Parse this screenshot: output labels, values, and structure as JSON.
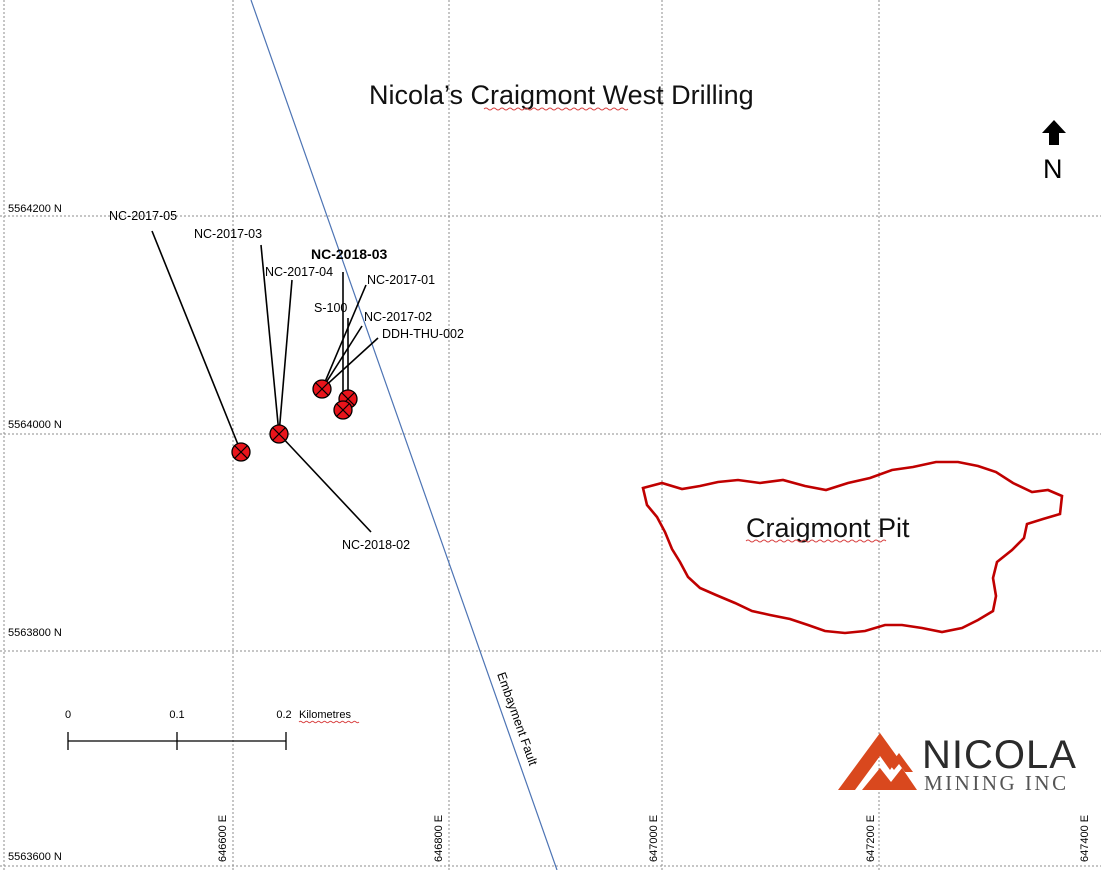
{
  "title": "Nicola’s Craigmont West Drilling",
  "north_label": "N",
  "grid": {
    "northings": [
      "5564200 N",
      "5564000 N",
      "5563800 N",
      "5563600 N"
    ],
    "eastings": [
      "646600 E",
      "646800 E",
      "647000 E",
      "647200 E",
      "647400 E"
    ]
  },
  "drill_holes": [
    {
      "name": "NC-2017-05",
      "bold": false
    },
    {
      "name": "NC-2017-03",
      "bold": false
    },
    {
      "name": "NC-2017-04",
      "bold": false
    },
    {
      "name": "NC-2018-03",
      "bold": true
    },
    {
      "name": "NC-2017-01",
      "bold": false
    },
    {
      "name": "S-100",
      "bold": false
    },
    {
      "name": "NC-2017-02",
      "bold": false
    },
    {
      "name": "DDH-THU-002",
      "bold": false
    },
    {
      "name": "NC-2018-02",
      "bold": false
    }
  ],
  "features": {
    "fault_label": "Embayment Fault",
    "pit_label": "Craigmont Pit"
  },
  "scale_bar": {
    "ticks": [
      "0",
      "0.1",
      "0.2"
    ],
    "unit": "Kilometres"
  },
  "logo": {
    "name": "NICOLA",
    "subtitle": "MINING INC"
  },
  "colors": {
    "collar": "#e8141b",
    "pit_outline": "#c00000",
    "fault": "#4d74b4",
    "logo_accent": "#d9481e"
  }
}
